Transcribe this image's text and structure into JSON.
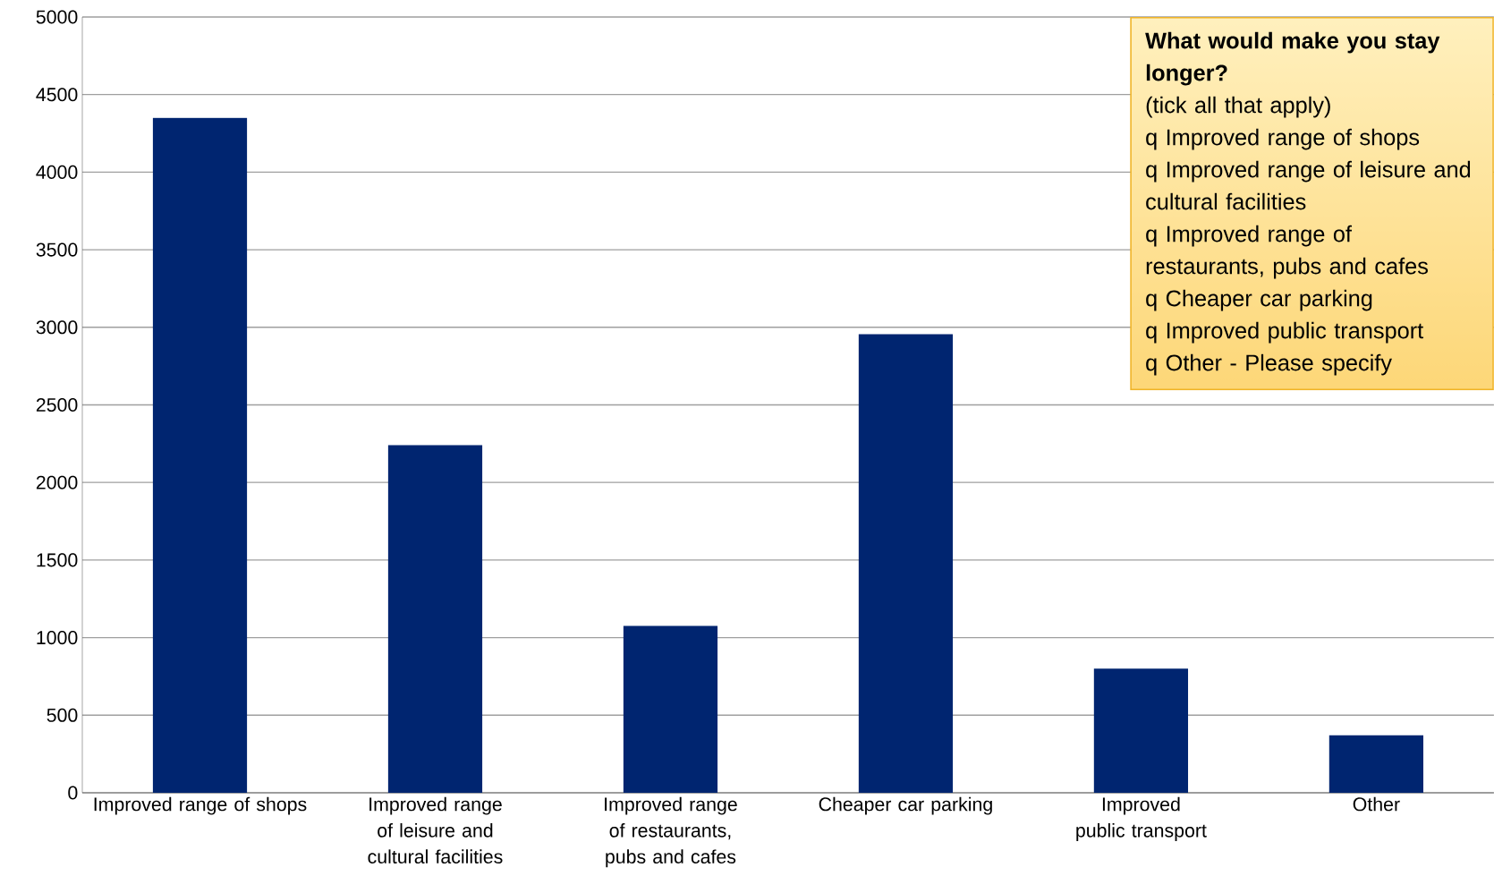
{
  "chart_data": {
    "type": "bar",
    "categories": [
      "Improved range of shops",
      "Improved range of leisure and cultural facilities",
      "Improved range of restaurants, pubs and cafes",
      "Cheaper car parking",
      "Improved public transport",
      "Other"
    ],
    "values": [
      4350,
      2240,
      1075,
      2955,
      800,
      370
    ],
    "color": "#002570",
    "ylim": [
      0,
      5000
    ],
    "yticks": [
      0,
      500,
      1000,
      1500,
      2000,
      2500,
      3000,
      3500,
      4000,
      4500,
      5000
    ],
    "grid": "y",
    "annotations": [
      "What would make you stay longer?",
      "(tick all that apply)",
      "q  Improved range of shops",
      "q  Improved range of leisure and cultural facilities",
      "q  Improved range of restaurants, pubs and cafes",
      "q  Cheaper car parking",
      "q  Improved public transport",
      "q Other - Please specify"
    ]
  }
}
